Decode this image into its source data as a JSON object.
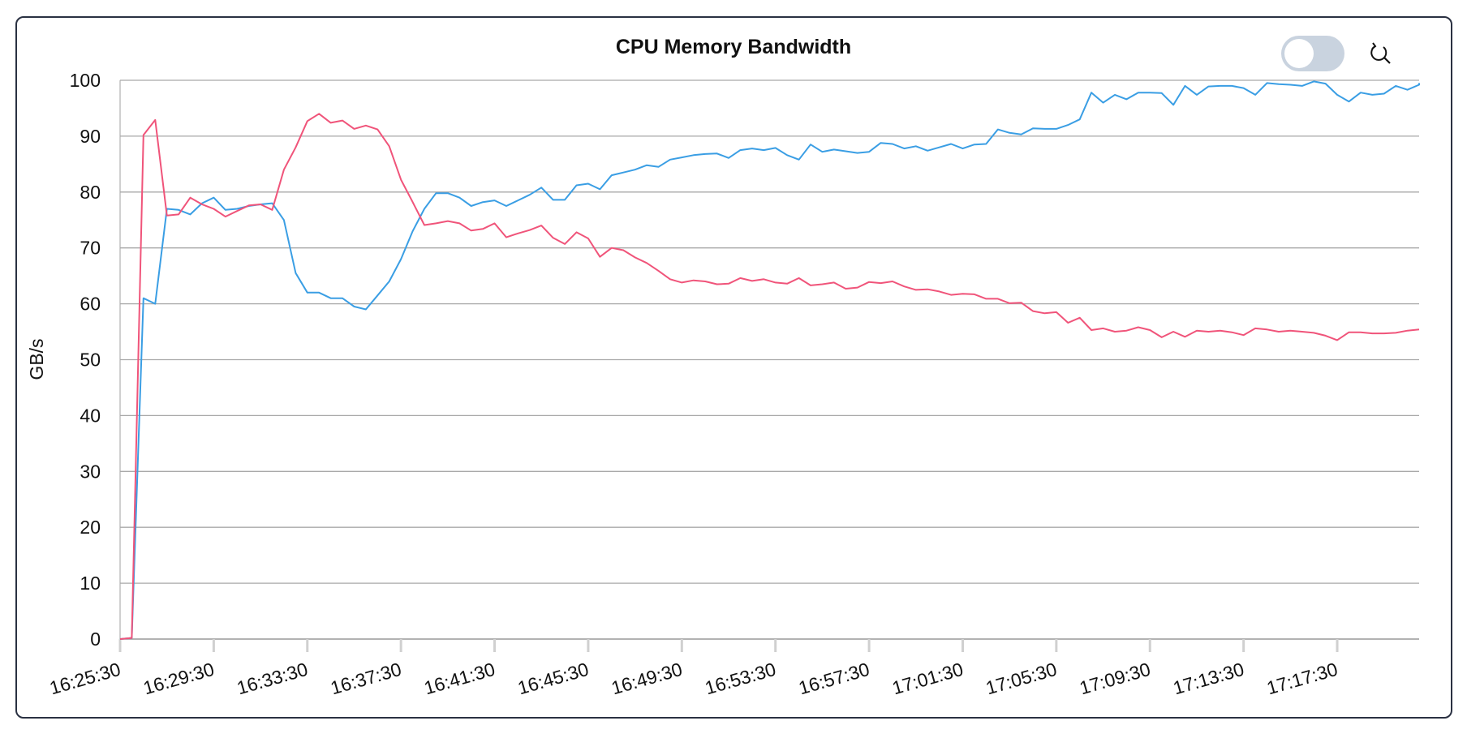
{
  "chart_data": {
    "type": "line",
    "title": "CPU Memory Bandwidth",
    "ylabel": "GB/s",
    "xlabel": "",
    "ylim": [
      0,
      100
    ],
    "yticks": [
      0,
      10,
      20,
      30,
      40,
      50,
      60,
      70,
      80,
      90,
      100
    ],
    "xticks": [
      "16:25:30",
      "16:29:30",
      "16:33:30",
      "16:37:30",
      "16:41:30",
      "16:45:30",
      "16:49:30",
      "16:53:30",
      "16:57:30",
      "17:01:30",
      "17:05:30",
      "17:09:30",
      "17:13:30",
      "17:17:30"
    ],
    "x_start_minutes": 0,
    "x_end_minutes": 55.5,
    "grid": true,
    "legend": "none",
    "series": [
      {
        "color": "#3a9ee4",
        "points": [
          [
            0,
            0
          ],
          [
            0.5,
            0.2
          ],
          [
            1,
            61
          ],
          [
            1.5,
            60
          ],
          [
            2,
            77
          ],
          [
            2.5,
            76.8
          ],
          [
            3,
            76
          ],
          [
            3.5,
            78
          ],
          [
            4,
            79
          ],
          [
            4.5,
            76.8
          ],
          [
            5,
            77
          ],
          [
            5.5,
            77.5
          ],
          [
            6,
            77.8
          ],
          [
            6.5,
            78
          ],
          [
            7,
            75
          ],
          [
            7.5,
            65.5
          ],
          [
            8,
            62
          ],
          [
            8.5,
            62
          ],
          [
            9,
            61
          ],
          [
            9.5,
            61
          ],
          [
            10,
            59.5
          ],
          [
            10.5,
            59
          ],
          [
            11,
            61.5
          ],
          [
            11.5,
            64
          ],
          [
            12,
            68
          ],
          [
            12.5,
            73
          ],
          [
            13,
            77
          ],
          [
            13.5,
            79.8
          ],
          [
            14,
            79.8
          ],
          [
            14.5,
            79
          ],
          [
            15,
            77.5
          ],
          [
            15.5,
            78.2
          ],
          [
            16,
            78.5
          ],
          [
            16.5,
            77.5
          ],
          [
            17,
            78.5
          ],
          [
            17.5,
            79.5
          ],
          [
            18,
            80.8
          ],
          [
            18.5,
            78.6
          ],
          [
            19,
            78.6
          ],
          [
            19.5,
            81.2
          ],
          [
            20,
            81.5
          ],
          [
            20.5,
            80.5
          ],
          [
            21,
            83
          ],
          [
            21.5,
            83.5
          ],
          [
            22,
            84
          ],
          [
            22.5,
            84.8
          ],
          [
            23,
            84.5
          ],
          [
            23.5,
            85.8
          ],
          [
            24,
            86.2
          ],
          [
            24.5,
            86.6
          ],
          [
            25,
            86.8
          ],
          [
            25.5,
            86.9
          ],
          [
            26,
            86.1
          ],
          [
            26.5,
            87.5
          ],
          [
            27,
            87.8
          ],
          [
            27.5,
            87.5
          ],
          [
            28,
            87.9
          ],
          [
            28.5,
            86.6
          ],
          [
            29,
            85.8
          ],
          [
            29.5,
            88.5
          ],
          [
            30,
            87.2
          ],
          [
            30.5,
            87.6
          ],
          [
            31,
            87.3
          ],
          [
            31.5,
            87
          ],
          [
            32,
            87.2
          ],
          [
            32.5,
            88.8
          ],
          [
            33,
            88.6
          ],
          [
            33.5,
            87.8
          ],
          [
            34,
            88.2
          ],
          [
            34.5,
            87.4
          ],
          [
            35,
            88
          ],
          [
            35.5,
            88.6
          ],
          [
            36,
            87.8
          ],
          [
            36.5,
            88.5
          ],
          [
            37,
            88.6
          ],
          [
            37.5,
            91.2
          ],
          [
            38,
            90.6
          ],
          [
            38.5,
            90.3
          ],
          [
            39,
            91.4
          ],
          [
            39.5,
            91.3
          ],
          [
            40,
            91.3
          ],
          [
            40.5,
            92
          ],
          [
            41,
            93
          ],
          [
            41.5,
            97.8
          ],
          [
            42,
            96
          ],
          [
            42.5,
            97.4
          ],
          [
            43,
            96.6
          ],
          [
            43.5,
            97.8
          ],
          [
            44,
            97.8
          ],
          [
            44.5,
            97.7
          ],
          [
            45,
            95.6
          ],
          [
            45.5,
            99
          ],
          [
            46,
            97.4
          ],
          [
            46.5,
            98.9
          ],
          [
            47,
            99
          ],
          [
            47.5,
            99
          ],
          [
            48,
            98.6
          ],
          [
            48.5,
            97.4
          ],
          [
            49,
            99.5
          ],
          [
            49.5,
            99.3
          ],
          [
            50,
            99.2
          ],
          [
            50.5,
            99
          ],
          [
            51,
            99.8
          ],
          [
            51.5,
            99.4
          ],
          [
            52,
            97.4
          ],
          [
            52.5,
            96.2
          ],
          [
            53,
            97.8
          ],
          [
            53.5,
            97.4
          ],
          [
            54,
            97.6
          ],
          [
            54.5,
            99
          ],
          [
            55,
            98.3
          ],
          [
            55.5,
            99.2
          ],
          [
            55.5,
            99.5
          ]
        ]
      },
      {
        "color": "#f0547a",
        "points": [
          [
            0,
            0
          ],
          [
            0.5,
            0.2
          ],
          [
            1,
            90.2
          ],
          [
            1.5,
            92.9
          ],
          [
            2,
            75.8
          ],
          [
            2.5,
            76
          ],
          [
            3,
            79
          ],
          [
            3.5,
            77.8
          ],
          [
            4,
            77
          ],
          [
            4.5,
            75.6
          ],
          [
            5,
            76.6
          ],
          [
            5.5,
            77.6
          ],
          [
            6,
            77.8
          ],
          [
            6.5,
            76.8
          ],
          [
            7,
            84
          ],
          [
            7.5,
            88
          ],
          [
            8,
            92.7
          ],
          [
            8.5,
            94
          ],
          [
            9,
            92.4
          ],
          [
            9.5,
            92.8
          ],
          [
            10,
            91.3
          ],
          [
            10.5,
            91.9
          ],
          [
            11,
            91.2
          ],
          [
            11.5,
            88.2
          ],
          [
            12,
            82.2
          ],
          [
            12.5,
            78.2
          ],
          [
            13,
            74.1
          ],
          [
            13.5,
            74.4
          ],
          [
            14,
            74.8
          ],
          [
            14.5,
            74.4
          ],
          [
            15,
            73.1
          ],
          [
            15.5,
            73.4
          ],
          [
            16,
            74.4
          ],
          [
            16.5,
            71.9
          ],
          [
            17,
            72.6
          ],
          [
            17.5,
            73.2
          ],
          [
            18,
            74
          ],
          [
            18.5,
            71.8
          ],
          [
            19,
            70.7
          ],
          [
            19.5,
            72.8
          ],
          [
            20,
            71.7
          ],
          [
            20.5,
            68.4
          ],
          [
            21,
            70
          ],
          [
            21.5,
            69.6
          ],
          [
            22,
            68.3
          ],
          [
            22.5,
            67.3
          ],
          [
            23,
            65.9
          ],
          [
            23.5,
            64.4
          ],
          [
            24,
            63.8
          ],
          [
            24.5,
            64.2
          ],
          [
            25,
            64
          ],
          [
            25.5,
            63.5
          ],
          [
            26,
            63.6
          ],
          [
            26.5,
            64.6
          ],
          [
            27,
            64.1
          ],
          [
            27.5,
            64.4
          ],
          [
            28,
            63.8
          ],
          [
            28.5,
            63.6
          ],
          [
            29,
            64.6
          ],
          [
            29.5,
            63.3
          ],
          [
            30,
            63.5
          ],
          [
            30.5,
            63.8
          ],
          [
            31,
            62.7
          ],
          [
            31.5,
            62.9
          ],
          [
            32,
            63.9
          ],
          [
            32.5,
            63.7
          ],
          [
            33,
            64
          ],
          [
            33.5,
            63.1
          ],
          [
            34,
            62.5
          ],
          [
            34.5,
            62.6
          ],
          [
            35,
            62.2
          ],
          [
            35.5,
            61.6
          ],
          [
            36,
            61.8
          ],
          [
            36.5,
            61.7
          ],
          [
            37,
            60.9
          ],
          [
            37.5,
            60.9
          ],
          [
            38,
            60.1
          ],
          [
            38.5,
            60.2
          ],
          [
            39,
            58.7
          ],
          [
            39.5,
            58.3
          ],
          [
            40,
            58.5
          ],
          [
            40.5,
            56.6
          ],
          [
            41,
            57.5
          ],
          [
            41.5,
            55.3
          ],
          [
            42,
            55.6
          ],
          [
            42.5,
            55.0
          ],
          [
            43,
            55.2
          ],
          [
            43.5,
            55.8
          ],
          [
            44,
            55.3
          ],
          [
            44.5,
            54
          ],
          [
            45,
            55
          ],
          [
            45.5,
            54.1
          ],
          [
            46,
            55.2
          ],
          [
            46.5,
            55
          ],
          [
            47,
            55.2
          ],
          [
            47.5,
            54.9
          ],
          [
            48,
            54.4
          ],
          [
            48.5,
            55.6
          ],
          [
            49,
            55.4
          ],
          [
            49.5,
            55
          ],
          [
            50,
            55.2
          ],
          [
            50.5,
            55
          ],
          [
            51,
            54.8
          ],
          [
            51.5,
            54.3
          ],
          [
            52,
            53.5
          ],
          [
            52.5,
            54.9
          ],
          [
            53,
            54.9
          ],
          [
            53.5,
            54.7
          ],
          [
            54,
            54.7
          ],
          [
            54.5,
            54.8
          ],
          [
            55,
            55.2
          ],
          [
            55.5,
            55.4
          ]
        ]
      }
    ]
  },
  "controls": {
    "toggle_state": "off",
    "reset_icon": "reset-zoom-icon",
    "toggle_color": "#c9d3df"
  }
}
